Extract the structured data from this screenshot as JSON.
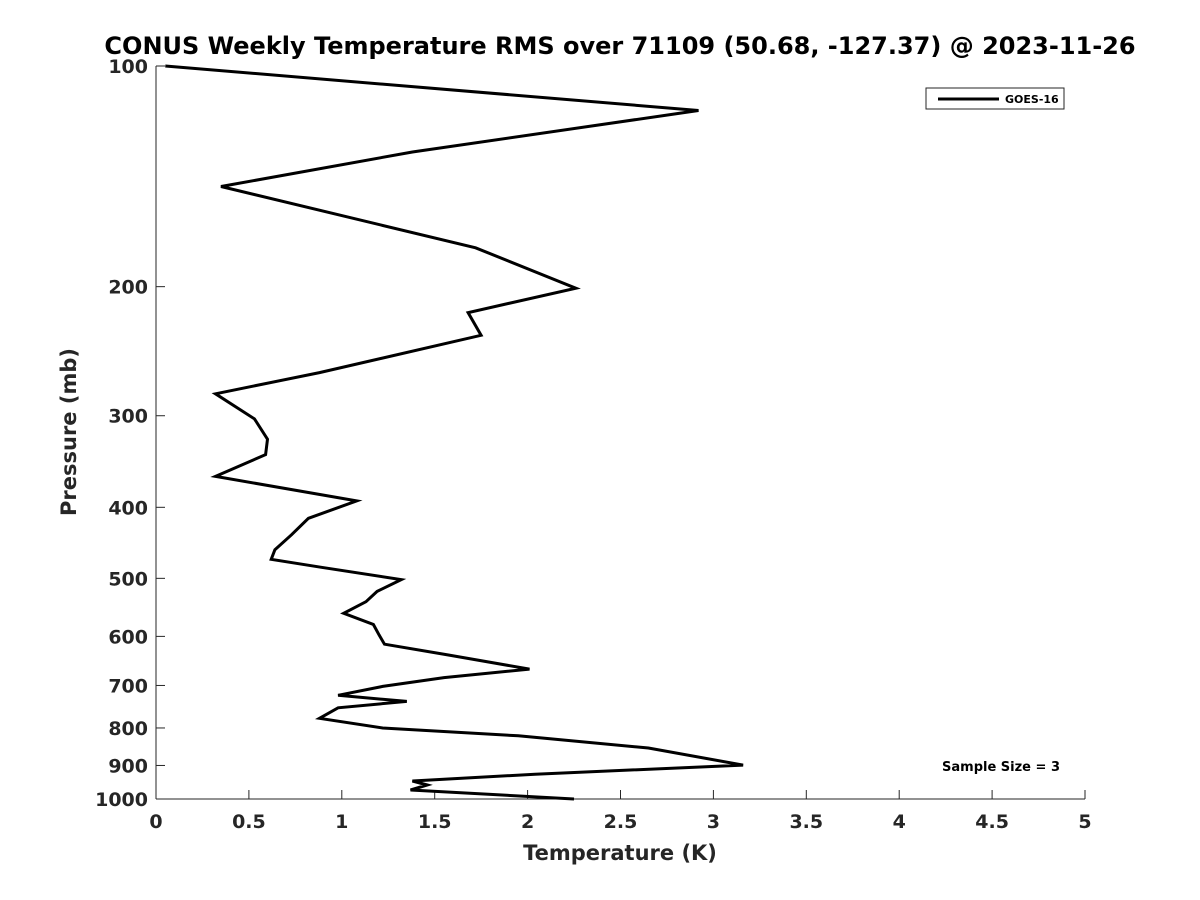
{
  "chart_data": {
    "type": "line",
    "title": "CONUS Weekly Temperature RMS over 71109 (50.68, -127.37) @ 2023-11-26",
    "xlabel": "Temperature (K)",
    "ylabel": "Pressure (mb)",
    "xlim": [
      0,
      5
    ],
    "ylim": [
      100,
      1000
    ],
    "y_scale": "log",
    "y_reversed": true,
    "x_ticks": [
      0,
      0.5,
      1,
      1.5,
      2,
      2.5,
      3,
      3.5,
      4,
      4.5,
      5
    ],
    "x_tick_labels": [
      "0",
      "0.5",
      "1",
      "1.5",
      "2",
      "2.5",
      "3",
      "3.5",
      "4",
      "4.5",
      "5"
    ],
    "y_ticks": [
      100,
      200,
      300,
      400,
      500,
      600,
      700,
      800,
      900,
      1000
    ],
    "y_tick_labels": [
      "100",
      "200",
      "300",
      "400",
      "500",
      "600",
      "700",
      "800",
      "900",
      "1000"
    ],
    "grid": false,
    "legend_position": "top-right",
    "series": [
      {
        "name": "GOES-16",
        "color": "#000000",
        "x": [
          0.05,
          2.92,
          1.38,
          0.35,
          1.72,
          2.26,
          1.68,
          1.75,
          0.88,
          0.32,
          0.53,
          0.6,
          0.59,
          0.32,
          1.08,
          0.82,
          0.73,
          0.64,
          0.62,
          0.89,
          1.32,
          1.19,
          1.13,
          1.01,
          1.17,
          1.2,
          1.23,
          1.57,
          2.01,
          1.55,
          1.22,
          0.98,
          1.35,
          0.98,
          0.88,
          1.22,
          1.95,
          2.65,
          3.16,
          2.04,
          1.38,
          1.46,
          1.37,
          2.25
        ],
        "y": [
          100,
          115,
          131,
          146,
          177,
          201,
          217,
          233,
          262,
          280,
          303,
          323,
          339,
          363,
          392,
          414,
          436,
          457,
          471,
          483,
          502,
          521,
          538,
          558,
          578,
          597,
          615,
          636,
          665,
          683,
          702,
          722,
          736,
          751,
          776,
          800,
          820,
          852,
          899,
          925,
          945,
          957,
          972,
          1000
        ]
      }
    ],
    "annotation": "Sample Size = 3"
  }
}
